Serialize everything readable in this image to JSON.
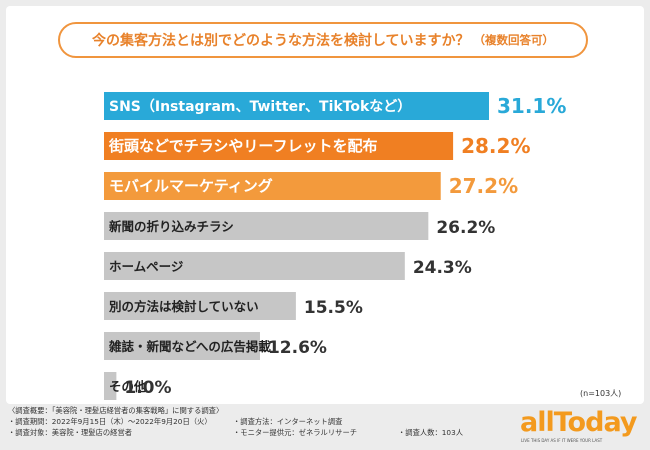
{
  "chart_data": {
    "type": "bar",
    "orientation": "horizontal",
    "title": "今の集客方法とは別でどのような方法を検討していますか？",
    "title_note": "（複数回答可）",
    "categories": [
      "SNS（Instagram、Twitter、TikTokなど）",
      "街頭などでチラシやリーフレットを配布",
      "モバイルマーケティング",
      "新聞の折り込みチラシ",
      "ホームページ",
      "別の方法は検討していない",
      "雑誌・新聞などへの広告掲載",
      "その他"
    ],
    "values": [
      31.1,
      28.2,
      27.2,
      26.2,
      24.3,
      15.5,
      12.6,
      1.0
    ],
    "value_labels": [
      "31.1%",
      "28.2%",
      "27.2%",
      "26.2%",
      "24.3%",
      "15.5%",
      "12.6%",
      "1.0%"
    ],
    "bar_colors": [
      "#29a9d8",
      "#f07f22",
      "#f39a3c",
      "#c6c6c6",
      "#c6c6c6",
      "#c6c6c6",
      "#c6c6c6",
      "#c6c6c6"
    ],
    "value_colors": [
      "#29a9d8",
      "#f07f22",
      "#f39a3c",
      "#333333",
      "#333333",
      "#333333",
      "#333333",
      "#333333"
    ],
    "xlim": [
      0,
      35
    ],
    "n_note": "(n=103人)"
  },
  "footer": {
    "line1": "〈調査概要：「美容院・理髪店経営者の集客戦略」に関する調査〉",
    "period": "・調査期間：2022年9月15日（木）～2022年9月20日（火）",
    "method": "・調査方法：インターネット調査",
    "target": "・調査対象：美容院・理髪店の経営者",
    "provider": "・モニター提供元：ゼネラルリサーチ",
    "count": "・調査人数：103人"
  },
  "logo": {
    "name": "allToday",
    "tagline": "LIVE THIS DAY AS IF IT WERE YOUR LAST"
  },
  "colors": {
    "accent": "#f0953e",
    "logo": "#f39a1e"
  }
}
